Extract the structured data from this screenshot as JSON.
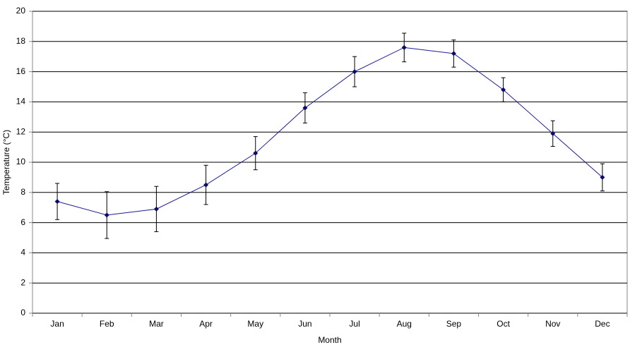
{
  "chart_data": {
    "type": "line",
    "x_label": "Month",
    "y_label": "Temperature (°C)",
    "categories": [
      "Jan",
      "Feb",
      "Mar",
      "Apr",
      "May",
      "Jun",
      "Jul",
      "Aug",
      "Sep",
      "Oct",
      "Nov",
      "Dec"
    ],
    "values": [
      7.4,
      6.5,
      6.9,
      8.5,
      10.6,
      13.6,
      16.0,
      17.6,
      17.2,
      14.8,
      11.9,
      9.0
    ],
    "errors": [
      1.2,
      1.55,
      1.5,
      1.3,
      1.1,
      1.0,
      1.0,
      0.95,
      0.9,
      0.8,
      0.85,
      0.9
    ],
    "color": "#1c1c96",
    "marker_color": "#0a0a6e",
    "ylim": [
      0,
      20
    ],
    "yticks": [
      0,
      2,
      4,
      6,
      8,
      10,
      12,
      14,
      16,
      18,
      20
    ],
    "grid": true
  }
}
